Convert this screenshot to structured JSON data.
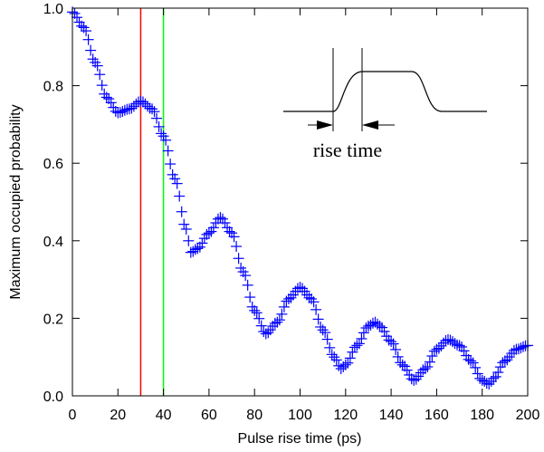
{
  "chart_data": {
    "type": "scatter",
    "title": "",
    "xlabel": "Pulse rise time (ps)",
    "ylabel": "Maximum occupied probability",
    "xlim": [
      0,
      200
    ],
    "ylim": [
      0,
      1.0
    ],
    "xticks": [
      0,
      20,
      40,
      60,
      80,
      100,
      120,
      140,
      160,
      180,
      200
    ],
    "xtick_labels": [
      "0",
      "20",
      "40",
      "60",
      "80",
      "100",
      "120",
      "140",
      "160",
      "180",
      "200"
    ],
    "yticks": [
      0,
      0.2,
      0.4,
      0.6,
      0.8,
      1.0
    ],
    "ytick_labels": [
      "0.0",
      "0.2",
      "0.4",
      "0.6",
      "0.8",
      "1.0"
    ],
    "grid": false,
    "marker": "+",
    "marker_color": "#0000ff",
    "series": [
      {
        "points": [
          [
            0,
            0.99
          ],
          [
            5,
            0.95
          ],
          [
            10,
            0.86
          ],
          [
            15,
            0.77
          ],
          [
            20,
            0.73
          ],
          [
            25,
            0.74
          ],
          [
            30,
            0.76
          ],
          [
            35,
            0.74
          ],
          [
            40,
            0.67
          ],
          [
            45,
            0.56
          ],
          [
            50,
            0.43
          ],
          [
            52,
            0.37
          ],
          [
            55,
            0.38
          ],
          [
            60,
            0.42
          ],
          [
            65,
            0.46
          ],
          [
            70,
            0.42
          ],
          [
            75,
            0.32
          ],
          [
            80,
            0.22
          ],
          [
            85,
            0.16
          ],
          [
            90,
            0.19
          ],
          [
            95,
            0.25
          ],
          [
            100,
            0.28
          ],
          [
            105,
            0.25
          ],
          [
            110,
            0.17
          ],
          [
            115,
            0.1
          ],
          [
            118,
            0.07
          ],
          [
            120,
            0.08
          ],
          [
            125,
            0.13
          ],
          [
            130,
            0.18
          ],
          [
            133,
            0.19
          ],
          [
            135,
            0.18
          ],
          [
            140,
            0.14
          ],
          [
            145,
            0.08
          ],
          [
            150,
            0.04
          ],
          [
            155,
            0.07
          ],
          [
            160,
            0.12
          ],
          [
            165,
            0.145
          ],
          [
            170,
            0.13
          ],
          [
            175,
            0.09
          ],
          [
            180,
            0.04
          ],
          [
            183,
            0.03
          ],
          [
            185,
            0.045
          ],
          [
            190,
            0.09
          ],
          [
            195,
            0.12
          ],
          [
            200,
            0.13
          ]
        ]
      }
    ],
    "vertical_lines": [
      {
        "x": 30,
        "color": "#ff0000"
      },
      {
        "x": 40,
        "color": "#00ff00"
      }
    ],
    "inset": {
      "label": "rise time",
      "description_icon": "pulse-shape-diagram"
    }
  }
}
